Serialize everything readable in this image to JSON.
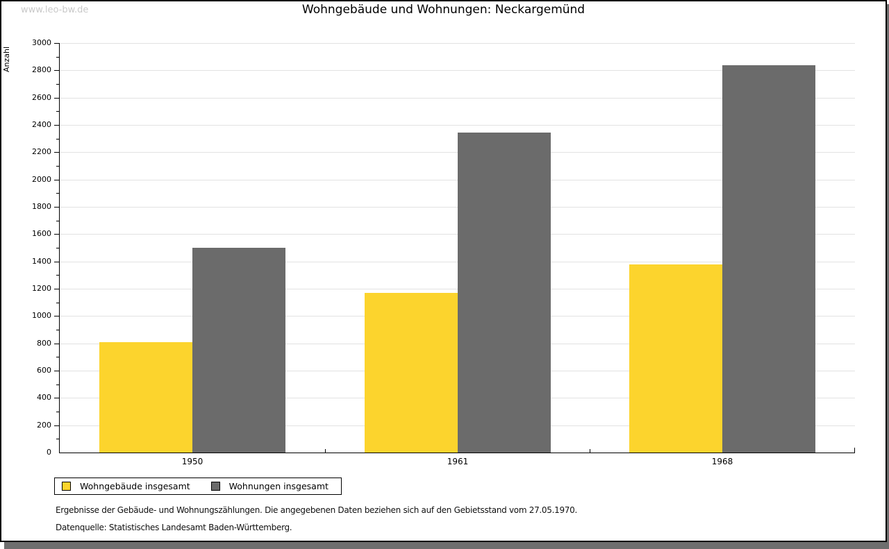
{
  "watermark": "www.leo-bw.de",
  "chart_data": {
    "type": "bar",
    "title": "Wohngebäude und Wohnungen: Neckargemünd",
    "ylabel": "Anzahl",
    "xlabel": "",
    "categories": [
      "1950",
      "1961",
      "1968"
    ],
    "series": [
      {
        "name": "Wohngebäude insgesamt",
        "color": "#FCD42D",
        "values": [
          810,
          1170,
          1380
        ]
      },
      {
        "name": "Wohnungen insgesamt",
        "color": "#6B6B6B",
        "values": [
          1500,
          2345,
          2835
        ]
      }
    ],
    "ylim": [
      0,
      3000
    ],
    "y_major_step": 200,
    "y_minor_step": 100,
    "grid": true,
    "legend_position": "bottom-left"
  },
  "footer": {
    "note1": "Ergebnisse der Gebäude- und Wohnungszählungen. Die angegebenen Daten beziehen sich auf den Gebietsstand vom 27.05.1970.",
    "note2": "Datenquelle: Statistisches Landesamt Baden-Württemberg."
  }
}
